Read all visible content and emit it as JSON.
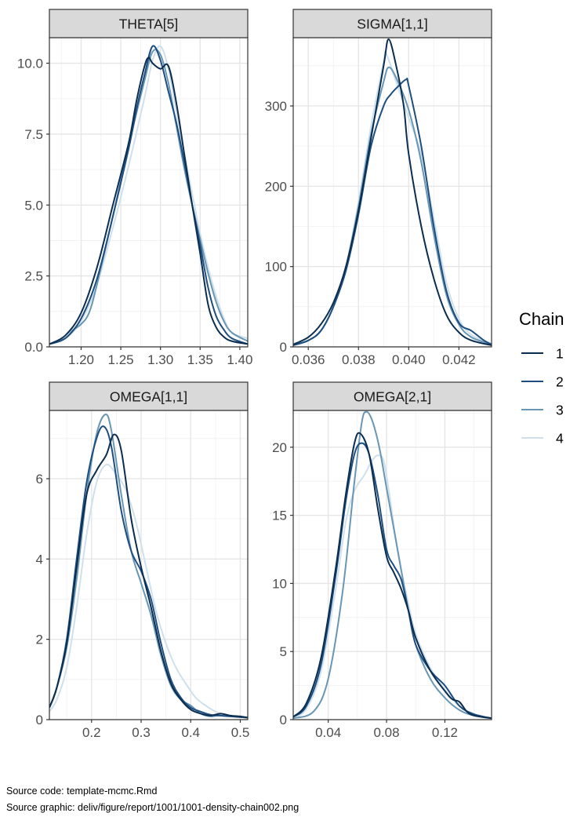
{
  "legend": {
    "title": "Chain",
    "placement": "right",
    "entries": [
      {
        "label": "1",
        "color": "#0b2d4f"
      },
      {
        "label": "2",
        "color": "#1d4e7f"
      },
      {
        "label": "3",
        "color": "#6896b5"
      },
      {
        "label": "4",
        "color": "#cfe0ec"
      }
    ]
  },
  "captions": {
    "source_code": "Source code: template-mcmc.Rmd",
    "source_graphic": "Source graphic: deliv/figure/report/1001/1001-density-chain002.png"
  },
  "chart_data": [
    {
      "type": "line",
      "title": "THETA[5]",
      "xlim": [
        1.16,
        1.41
      ],
      "ylim": [
        0,
        10.9
      ],
      "xticks": [
        1.2,
        1.25,
        1.3,
        1.35,
        1.4
      ],
      "xtick_labels": [
        "1.20",
        "1.25",
        "1.30",
        "1.35",
        "1.40"
      ],
      "yticks": [
        0,
        2.5,
        5.0,
        7.5,
        10.0
      ],
      "ytick_labels": [
        "0.0",
        "2.5",
        "5.0",
        "7.5",
        "10.0"
      ],
      "grid": true,
      "series": [
        {
          "name": "1",
          "x": [
            1.16,
            1.18,
            1.2,
            1.22,
            1.24,
            1.26,
            1.27,
            1.28,
            1.285,
            1.29,
            1.3,
            1.31,
            1.32,
            1.33,
            1.34,
            1.35,
            1.36,
            1.37,
            1.38,
            1.39,
            1.41
          ],
          "y": [
            0.1,
            0.4,
            1.2,
            2.8,
            5.0,
            7.2,
            8.7,
            9.9,
            10.2,
            10.0,
            9.8,
            9.9,
            8.6,
            6.8,
            5.0,
            3.3,
            1.5,
            0.7,
            0.35,
            0.2,
            0.1
          ]
        },
        {
          "name": "2",
          "x": [
            1.16,
            1.18,
            1.2,
            1.22,
            1.24,
            1.26,
            1.27,
            1.28,
            1.29,
            1.3,
            1.31,
            1.32,
            1.33,
            1.34,
            1.35,
            1.36,
            1.37,
            1.38,
            1.39,
            1.41
          ],
          "y": [
            0.1,
            0.3,
            1.0,
            2.4,
            4.6,
            7.0,
            8.4,
            9.6,
            10.6,
            10.1,
            9.0,
            7.9,
            6.5,
            5.0,
            3.6,
            2.1,
            1.1,
            0.6,
            0.3,
            0.1
          ]
        },
        {
          "name": "3",
          "x": [
            1.16,
            1.18,
            1.19,
            1.2,
            1.21,
            1.22,
            1.24,
            1.26,
            1.28,
            1.29,
            1.3,
            1.31,
            1.32,
            1.33,
            1.34,
            1.35,
            1.36,
            1.37,
            1.38,
            1.39,
            1.41
          ],
          "y": [
            0.1,
            0.3,
            0.6,
            0.8,
            1.2,
            2.2,
            4.6,
            7.1,
            9.4,
            10.4,
            10.3,
            9.3,
            7.8,
            6.3,
            5.0,
            3.8,
            2.6,
            1.6,
            0.9,
            0.5,
            0.2
          ]
        },
        {
          "name": "4",
          "x": [
            1.16,
            1.18,
            1.2,
            1.22,
            1.24,
            1.26,
            1.28,
            1.29,
            1.3,
            1.31,
            1.32,
            1.33,
            1.34,
            1.35,
            1.36,
            1.37,
            1.38,
            1.39,
            1.41
          ],
          "y": [
            0.1,
            0.3,
            0.9,
            2.2,
            4.2,
            6.4,
            8.8,
            10.1,
            10.6,
            9.8,
            8.3,
            6.8,
            5.4,
            4.0,
            2.8,
            1.8,
            1.0,
            0.5,
            0.3
          ]
        }
      ]
    },
    {
      "type": "line",
      "title": "SIGMA[1,1]",
      "xlim": [
        0.0354,
        0.0433
      ],
      "ylim": [
        0,
        385
      ],
      "xticks": [
        0.036,
        0.038,
        0.04,
        0.042
      ],
      "xtick_labels": [
        "0.036",
        "0.038",
        "0.040",
        "0.042"
      ],
      "yticks": [
        0,
        100,
        200,
        300
      ],
      "ytick_labels": [
        "0",
        "100",
        "200",
        "300"
      ],
      "grid": true,
      "series": [
        {
          "name": "1",
          "x": [
            0.0354,
            0.036,
            0.0365,
            0.037,
            0.0375,
            0.038,
            0.0385,
            0.039,
            0.0392,
            0.0395,
            0.0398,
            0.04,
            0.0405,
            0.041,
            0.0415,
            0.042,
            0.0425,
            0.0433
          ],
          "y": [
            3,
            12,
            28,
            55,
            100,
            170,
            260,
            350,
            383,
            350,
            300,
            240,
            150,
            85,
            40,
            18,
            8,
            2
          ]
        },
        {
          "name": "2",
          "x": [
            0.0354,
            0.036,
            0.0365,
            0.037,
            0.0375,
            0.038,
            0.0385,
            0.039,
            0.0393,
            0.0396,
            0.0399,
            0.04,
            0.0405,
            0.041,
            0.0415,
            0.042,
            0.0425,
            0.043,
            0.0433
          ],
          "y": [
            2,
            8,
            20,
            50,
            95,
            165,
            250,
            300,
            315,
            325,
            333,
            325,
            250,
            150,
            70,
            30,
            20,
            8,
            3
          ]
        },
        {
          "name": "3",
          "x": [
            0.0354,
            0.036,
            0.0365,
            0.037,
            0.0375,
            0.038,
            0.0385,
            0.039,
            0.0392,
            0.0395,
            0.04,
            0.0405,
            0.041,
            0.0415,
            0.042,
            0.0425,
            0.0433
          ],
          "y": [
            2,
            8,
            20,
            50,
            100,
            175,
            265,
            330,
            348,
            335,
            295,
            230,
            140,
            65,
            28,
            12,
            3
          ]
        },
        {
          "name": "4",
          "x": [
            0.0354,
            0.036,
            0.0365,
            0.037,
            0.0375,
            0.038,
            0.0385,
            0.039,
            0.0391,
            0.0395,
            0.04,
            0.0405,
            0.041,
            0.0415,
            0.042,
            0.0425,
            0.0433
          ],
          "y": [
            2,
            8,
            20,
            50,
            100,
            180,
            275,
            355,
            365,
            330,
            285,
            240,
            160,
            80,
            35,
            15,
            4
          ]
        }
      ]
    },
    {
      "type": "line",
      "title": "OMEGA[1,1]",
      "xlim": [
        0.115,
        0.515
      ],
      "ylim": [
        0,
        7.7
      ],
      "xticks": [
        0.2,
        0.3,
        0.4,
        0.5
      ],
      "xtick_labels": [
        "0.2",
        "0.3",
        "0.4",
        "0.5"
      ],
      "yticks": [
        0,
        2,
        4,
        6
      ],
      "ytick_labels": [
        "0",
        "2",
        "4",
        "6"
      ],
      "grid": true,
      "series": [
        {
          "name": "1",
          "x": [
            0.115,
            0.13,
            0.15,
            0.17,
            0.19,
            0.21,
            0.23,
            0.245,
            0.26,
            0.28,
            0.3,
            0.32,
            0.34,
            0.36,
            0.38,
            0.4,
            0.42,
            0.44,
            0.46,
            0.48,
            0.5,
            0.515
          ],
          "y": [
            0.3,
            0.8,
            1.9,
            3.8,
            5.6,
            6.2,
            6.6,
            7.1,
            6.7,
            5.0,
            3.8,
            2.8,
            1.7,
            0.9,
            0.5,
            0.25,
            0.15,
            0.1,
            0.15,
            0.1,
            0.08,
            0.05
          ]
        },
        {
          "name": "2",
          "x": [
            0.115,
            0.13,
            0.15,
            0.17,
            0.19,
            0.21,
            0.225,
            0.24,
            0.26,
            0.28,
            0.3,
            0.32,
            0.34,
            0.36,
            0.38,
            0.4,
            0.42,
            0.44,
            0.46,
            0.48,
            0.515
          ],
          "y": [
            0.3,
            0.8,
            2.0,
            4.0,
            5.9,
            7.0,
            7.3,
            6.8,
            5.2,
            4.2,
            3.7,
            3.0,
            1.9,
            1.0,
            0.55,
            0.3,
            0.2,
            0.12,
            0.1,
            0.08,
            0.05
          ]
        },
        {
          "name": "3",
          "x": [
            0.115,
            0.13,
            0.15,
            0.17,
            0.19,
            0.21,
            0.228,
            0.24,
            0.26,
            0.28,
            0.3,
            0.32,
            0.34,
            0.36,
            0.38,
            0.4,
            0.42,
            0.44,
            0.46,
            0.515
          ],
          "y": [
            0.3,
            0.8,
            1.8,
            3.5,
            5.6,
            7.1,
            7.6,
            7.2,
            5.6,
            4.2,
            3.4,
            2.6,
            1.6,
            0.85,
            0.5,
            0.35,
            0.15,
            0.08,
            0.1,
            0.05
          ]
        },
        {
          "name": "4",
          "x": [
            0.115,
            0.13,
            0.15,
            0.17,
            0.19,
            0.21,
            0.23,
            0.25,
            0.27,
            0.29,
            0.31,
            0.33,
            0.35,
            0.37,
            0.39,
            0.41,
            0.43,
            0.45,
            0.47,
            0.49,
            0.515
          ],
          "y": [
            0.2,
            0.5,
            1.3,
            2.8,
            4.6,
            5.9,
            6.35,
            6.1,
            5.7,
            4.9,
            3.8,
            2.7,
            1.9,
            1.3,
            0.9,
            0.55,
            0.35,
            0.2,
            0.12,
            0.08,
            0.05
          ]
        }
      ]
    },
    {
      "type": "line",
      "title": "OMEGA[2,1]",
      "xlim": [
        0.016,
        0.152
      ],
      "ylim": [
        0,
        22.7
      ],
      "xticks": [
        0.04,
        0.08,
        0.12
      ],
      "xtick_labels": [
        "0.04",
        "0.08",
        "0.12"
      ],
      "yticks": [
        0,
        5,
        10,
        15,
        20
      ],
      "ytick_labels": [
        "0",
        "5",
        "10",
        "15",
        "20"
      ],
      "grid": true,
      "series": [
        {
          "name": "1",
          "x": [
            0.016,
            0.025,
            0.035,
            0.045,
            0.052,
            0.058,
            0.062,
            0.068,
            0.074,
            0.08,
            0.085,
            0.09,
            0.095,
            0.1,
            0.11,
            0.12,
            0.125,
            0.13,
            0.135,
            0.14,
            0.152
          ],
          "y": [
            0.2,
            1.2,
            4.5,
            11.0,
            16.5,
            20.3,
            21.0,
            19.5,
            15.5,
            12.0,
            10.8,
            9.6,
            8.0,
            6.0,
            3.6,
            2.1,
            1.5,
            1.3,
            0.6,
            0.3,
            0.1
          ]
        },
        {
          "name": "2",
          "x": [
            0.016,
            0.025,
            0.035,
            0.045,
            0.052,
            0.058,
            0.063,
            0.068,
            0.074,
            0.08,
            0.085,
            0.09,
            0.095,
            0.1,
            0.11,
            0.12,
            0.13,
            0.14,
            0.152
          ],
          "y": [
            0.2,
            1.0,
            4.0,
            10.5,
            16.0,
            19.5,
            20.3,
            19.5,
            16.5,
            12.5,
            11.3,
            10.3,
            8.0,
            5.5,
            3.6,
            2.5,
            1.0,
            0.4,
            0.1
          ]
        },
        {
          "name": "3",
          "x": [
            0.016,
            0.03,
            0.04,
            0.05,
            0.058,
            0.063,
            0.066,
            0.07,
            0.075,
            0.08,
            0.085,
            0.09,
            0.095,
            0.1,
            0.11,
            0.12,
            0.13,
            0.14,
            0.152
          ],
          "y": [
            0.1,
            0.6,
            3.0,
            9.5,
            17.5,
            21.8,
            22.6,
            22.0,
            20.0,
            17.0,
            14.0,
            11.0,
            8.0,
            5.5,
            3.0,
            1.6,
            0.7,
            0.3,
            0.1
          ]
        },
        {
          "name": "4",
          "x": [
            0.016,
            0.025,
            0.035,
            0.045,
            0.052,
            0.058,
            0.065,
            0.07,
            0.074,
            0.078,
            0.082,
            0.086,
            0.09,
            0.095,
            0.1,
            0.11,
            0.12,
            0.13,
            0.14,
            0.152
          ],
          "y": [
            0.1,
            0.8,
            3.5,
            9.5,
            14.5,
            16.8,
            18.0,
            19.0,
            19.4,
            19.0,
            16.5,
            13.5,
            11.0,
            8.5,
            6.3,
            3.8,
            2.2,
            1.0,
            0.4,
            0.1
          ]
        }
      ]
    }
  ]
}
